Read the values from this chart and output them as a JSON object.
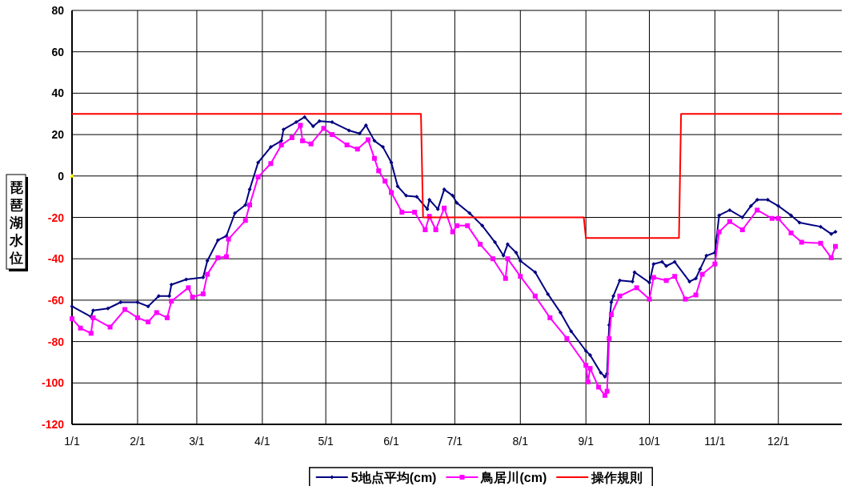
{
  "chart_data": {
    "type": "line",
    "ylabel": "琵琶湖水位",
    "xlim": [
      "--01-01",
      "--12-31"
    ],
    "ylim": [
      -120,
      80
    ],
    "xticks": [
      {
        "value": "--01-01",
        "label": "1/1"
      },
      {
        "value": "--02-01",
        "label": "2/1"
      },
      {
        "value": "--03-01",
        "label": "3/1"
      },
      {
        "value": "--04-01",
        "label": "4/1"
      },
      {
        "value": "--05-01",
        "label": "5/1"
      },
      {
        "value": "--06-01",
        "label": "6/1"
      },
      {
        "value": "--07-01",
        "label": "7/1"
      },
      {
        "value": "--08-01",
        "label": "8/1"
      },
      {
        "value": "--09-01",
        "label": "9/1"
      },
      {
        "value": "--10-01",
        "label": "10/1"
      },
      {
        "value": "--11-01",
        "label": "11/1"
      },
      {
        "value": "--12-01",
        "label": "12/1"
      }
    ],
    "yticks": [
      -120,
      -100,
      -80,
      -60,
      -40,
      -20,
      0,
      20,
      40,
      60,
      80
    ],
    "grid": true,
    "legend": "bottom",
    "series": [
      {
        "name": "5地点平均(cm)",
        "color": "#000080",
        "marker": "diamond",
        "x": [
          "--01-01",
          "--01-10",
          "--01-11",
          "--01-18",
          "--01-24",
          "--02-01",
          "--02-06",
          "--02-11",
          "--02-16",
          "--02-17",
          "--02-24",
          "--03-04",
          "--03-06",
          "--03-11",
          "--03-15",
          "--03-19",
          "--03-24",
          "--03-26",
          "--03-30",
          "--04-05",
          "--04-10",
          "--04-11",
          "--04-17",
          "--04-21",
          "--04-25",
          "--04-28",
          "--05-04",
          "--05-12",
          "--05-17",
          "--05-20",
          "--05-24",
          "--05-28",
          "--06-01",
          "--06-04",
          "--06-08",
          "--06-13",
          "--06-18",
          "--06-19",
          "--06-23",
          "--06-26",
          "--06-30",
          "--07-02",
          "--07-08",
          "--07-14",
          "--07-20",
          "--07-24",
          "--07-26",
          "--07-30",
          "--08-01",
          "--08-08",
          "--08-14",
          "--08-20",
          "--08-25",
          "--09-01",
          "--09-03",
          "--09-08",
          "--09-10",
          "--09-11",
          "--09-12",
          "--09-13",
          "--09-14",
          "--09-17",
          "--09-23",
          "--09-24",
          "--10-01",
          "--10-03",
          "--10-07",
          "--10-09",
          "--10-13",
          "--10-20",
          "--10-23",
          "--10-25",
          "--10-28",
          "--11-01",
          "--11-03",
          "--11-08",
          "--11-14",
          "--11-18",
          "--11-21",
          "--11-26",
          "--12-01",
          "--12-07",
          "--12-11",
          "--12-21",
          "--12-26",
          "--12-28"
        ],
        "values": [
          -63,
          -68,
          -65,
          -64,
          -61,
          -61,
          -63,
          -58,
          -58,
          -52.5,
          -50,
          -49,
          -41,
          -31,
          -29,
          -18,
          -14,
          -6.5,
          6.5,
          14,
          17,
          22.5,
          26,
          28.5,
          24,
          26.5,
          26,
          22,
          20.5,
          24.5,
          17,
          14,
          6.5,
          -5,
          -9.5,
          -10,
          -16,
          -11.5,
          -16,
          -6.5,
          -9.5,
          -13,
          -18,
          -24,
          -32,
          -38.5,
          -33,
          -37,
          -41,
          -46.5,
          -57,
          -66,
          -75,
          -84.5,
          -86.5,
          -95,
          -97,
          -95.5,
          -72,
          -61,
          -58,
          -50.5,
          -51,
          -46.5,
          -51.5,
          -42.5,
          -41.5,
          -43.5,
          -41.5,
          -51,
          -49.5,
          -45,
          -38.5,
          -37,
          -19,
          -16.5,
          -20,
          -14.5,
          -11.5,
          -11.5,
          -14.5,
          -19,
          -22.5,
          -24.5,
          -28,
          -27
        ]
      },
      {
        "name": "鳥居川(cm)",
        "color": "#ff00ff",
        "marker": "square",
        "x": [
          "--01-01",
          "--01-05",
          "--01-10",
          "--01-11",
          "--01-19",
          "--01-26",
          "--02-01",
          "--02-06",
          "--02-10",
          "--02-15",
          "--02-17",
          "--02-25",
          "--02-27",
          "--03-04",
          "--03-06",
          "--03-11",
          "--03-15",
          "--03-16",
          "--03-24",
          "--03-26",
          "--03-30",
          "--04-05",
          "--04-10",
          "--04-15",
          "--04-19",
          "--04-20",
          "--04-24",
          "--04-30",
          "--05-04",
          "--05-11",
          "--05-16",
          "--05-21",
          "--05-24",
          "--05-26",
          "--05-29",
          "--06-01",
          "--06-06",
          "--06-12",
          "--06-17",
          "--06-19",
          "--06-22",
          "--06-26",
          "--06-30",
          "--07-02",
          "--07-07",
          "--07-13",
          "--07-19",
          "--07-25",
          "--07-26",
          "--08-01",
          "--08-08",
          "--08-15",
          "--08-23",
          "--09-01",
          "--09-02",
          "--09-03",
          "--09-07",
          "--09-10",
          "--09-11",
          "--09-12",
          "--09-13",
          "--09-17",
          "--09-25",
          "--10-01",
          "--10-03",
          "--10-09",
          "--10-13",
          "--10-18",
          "--10-23",
          "--10-26",
          "--11-01",
          "--11-03",
          "--11-08",
          "--11-14",
          "--11-21",
          "--11-28",
          "--12-01",
          "--12-07",
          "--12-12",
          "--12-21",
          "--12-26",
          "--12-28"
        ],
        "values": [
          -69,
          -73.5,
          -76,
          -68.5,
          -73,
          -64.5,
          -68.5,
          -70.5,
          -66,
          -68.5,
          -60.5,
          -54,
          -58.5,
          -57,
          -47.5,
          -39.5,
          -39,
          -30.5,
          -21.5,
          -14,
          -0.5,
          6,
          15,
          18.5,
          24.5,
          17,
          15.5,
          23,
          20,
          15,
          13,
          17.5,
          8.5,
          2.5,
          -2.5,
          -8,
          -17.5,
          -17.5,
          -26,
          -19.5,
          -26,
          -15.5,
          -27,
          -24,
          -24,
          -33,
          -40,
          -49.5,
          -40,
          -48.5,
          -58,
          -68.5,
          -78.5,
          -91.5,
          -99.5,
          -93,
          -102,
          -106,
          -104,
          -78.5,
          -67,
          -58,
          -54,
          -59.5,
          -49,
          -50.5,
          -48.5,
          -59.5,
          -57.5,
          -47.5,
          -42.5,
          -27,
          -22,
          -26,
          -16.5,
          -20.5,
          -20.5,
          -27.5,
          -32,
          -32.5,
          -39.5,
          -34
        ]
      },
      {
        "name": "操作規則",
        "color": "#ff0000",
        "marker": "none",
        "x": [
          "--01-01",
          "--06-15",
          "--06-16",
          "--08-31",
          "--09-01",
          "--10-15",
          "--10-16",
          "--12-31"
        ],
        "values": [
          30,
          30,
          -20,
          -20,
          -30,
          -30,
          30,
          30
        ]
      },
      {
        "type": "scatter",
        "color": "#ffff00",
        "marker": "triangle",
        "x": [
          "--01-01"
        ],
        "values": [
          0
        ]
      }
    ]
  }
}
